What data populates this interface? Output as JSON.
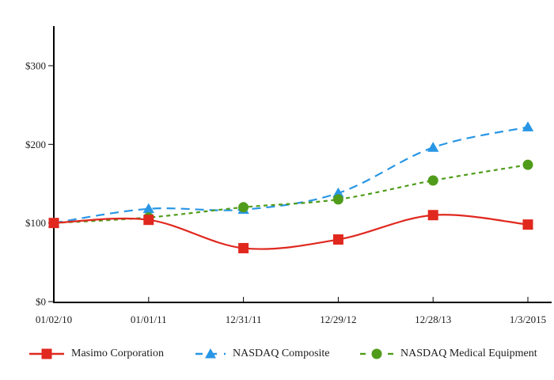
{
  "chart_data": {
    "type": "line",
    "title": "",
    "xlabel": "",
    "ylabel": "",
    "categories": [
      "01/02/10",
      "01/01/11",
      "12/31/11",
      "12/29/12",
      "12/28/13",
      "1/3/2015"
    ],
    "series": [
      {
        "name": "Masimo Corporation",
        "color": "#e0281f",
        "marker": "square",
        "line_style": "solid",
        "values": [
          100,
          104,
          68,
          79,
          110,
          98
        ]
      },
      {
        "name": "NASDAQ Composite",
        "color": "#2896e5",
        "marker": "triangle",
        "line_style": "dashed-long",
        "values": [
          100,
          118,
          117,
          138,
          196,
          222
        ]
      },
      {
        "name": "NASDAQ Medical Equipment",
        "color": "#509c1a",
        "marker": "circle",
        "line_style": "dashed-short",
        "values": [
          100,
          107,
          120,
          130,
          154,
          174
        ]
      }
    ],
    "draw_order": [
      1,
      2,
      0
    ],
    "ylim": [
      0,
      350
    ],
    "yticks": [
      0,
      100,
      200,
      300
    ],
    "ytick_labels": [
      "$0",
      "$100",
      "$200",
      "$300"
    ],
    "grid": false,
    "legend_position": "bottom",
    "axis_color": "#000000",
    "text_color": "#1c1c1c"
  }
}
